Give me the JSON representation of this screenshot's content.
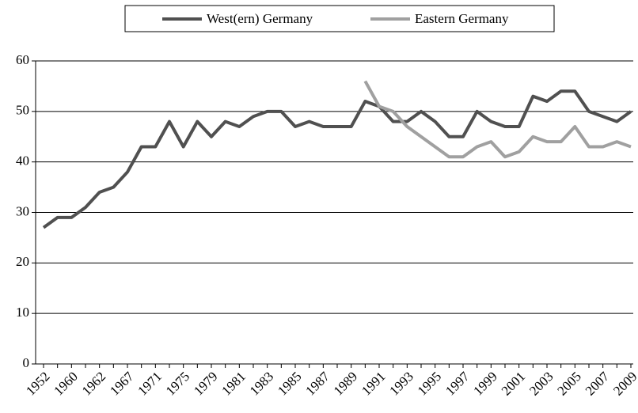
{
  "chart_data": {
    "type": "line",
    "categories": [
      "1952",
      null,
      "1960",
      null,
      "1962",
      null,
      "1967",
      null,
      "1971",
      null,
      "1975",
      null,
      "1979",
      null,
      "1981",
      null,
      "1983",
      null,
      "1985",
      null,
      "1987",
      null,
      "1989",
      null,
      "1991",
      null,
      "1993",
      null,
      "1995",
      null,
      "1997",
      null,
      "1999",
      null,
      "2001",
      null,
      "2003",
      null,
      "2005",
      null,
      "2007",
      null,
      "2009"
    ],
    "series": [
      {
        "name": "West(ern) Germany",
        "color": "#505050",
        "values": [
          27,
          29,
          29,
          31,
          34,
          35,
          38,
          43,
          43,
          48,
          43,
          48,
          45,
          48,
          47,
          49,
          50,
          50,
          47,
          48,
          47,
          47,
          47,
          52,
          51,
          48,
          48,
          50,
          48,
          45,
          45,
          50,
          48,
          47,
          47,
          53,
          52,
          54,
          54,
          50,
          49,
          48,
          50
        ]
      },
      {
        "name": "Eastern Germany",
        "color": "#a0a0a0",
        "values": [
          null,
          null,
          null,
          null,
          null,
          null,
          null,
          null,
          null,
          null,
          null,
          null,
          null,
          null,
          null,
          null,
          null,
          null,
          null,
          null,
          null,
          null,
          null,
          56,
          51,
          50,
          47,
          45,
          43,
          41,
          41,
          43,
          44,
          41,
          42,
          45,
          44,
          44,
          47,
          43,
          43,
          44,
          43
        ]
      }
    ],
    "ylim": [
      0,
      60
    ],
    "yticks": [
      0,
      10,
      20,
      30,
      40,
      50,
      60
    ],
    "grid": true,
    "legend": "top"
  }
}
